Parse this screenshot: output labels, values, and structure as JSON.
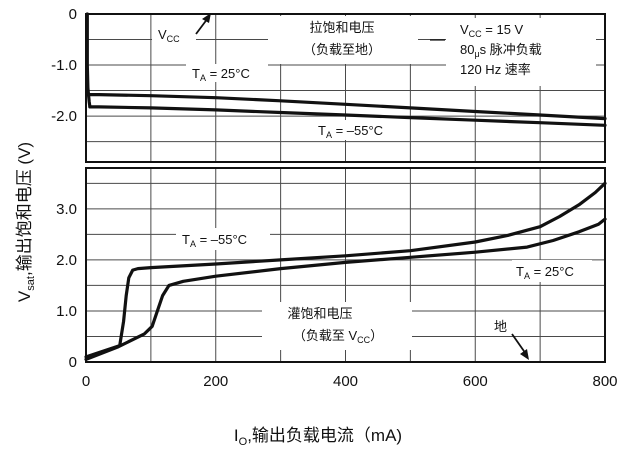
{
  "chart_data": {
    "type": "line",
    "x_ticks": [
      0,
      200,
      400,
      600,
      800
    ],
    "x_tick_labels": [
      "0",
      "200",
      "400",
      "600",
      "800"
    ],
    "xlim": [
      0,
      800
    ],
    "xlabel": {
      "pre": "I",
      "sub": "O",
      "post": ",输出负载电流（mA)"
    },
    "ylabel": {
      "pre": "V",
      "sub": "sat",
      "post": ",输出饱和电压 (V)"
    },
    "grid": true,
    "panels": [
      {
        "id": "top",
        "ylim": [
          -2.9,
          0
        ],
        "y_ticks": [
          0,
          -1.0,
          -2.0
        ],
        "y_tick_labels": [
          "0",
          "-1.0",
          "-2.0"
        ],
        "title_lines": [
          "拉饱和电压",
          "（负载至地）"
        ],
        "conditions": [
          {
            "pre": "V",
            "sub": "CC",
            "post": " = 15 V"
          },
          {
            "pre": "80",
            "sub": "μ",
            "post": "s 脉冲负载"
          },
          {
            "pre": "120 Hz  速率",
            "sub": "",
            "post": ""
          }
        ],
        "marker": {
          "pre": "V",
          "sub": "CC",
          "post": ""
        },
        "series": [
          {
            "name": "TA = 25°C",
            "label": {
              "pre": "T",
              "sub": "A",
              "post": " = 25°C"
            },
            "x": [
              6,
              20,
              100,
              200,
              300,
              400,
              500,
              600,
              700,
              800
            ],
            "y": [
              -1.58,
              -1.58,
              -1.6,
              -1.64,
              -1.7,
              -1.77,
              -1.84,
              -1.91,
              -1.98,
              -2.05
            ]
          },
          {
            "name": "TA = -55°C",
            "label": {
              "pre": "T",
              "sub": "A",
              "post": " = –55°C"
            },
            "x": [
              6,
              20,
              100,
              200,
              300,
              400,
              500,
              600,
              700,
              800
            ],
            "y": [
              -1.82,
              -1.82,
              -1.84,
              -1.88,
              -1.93,
              -1.98,
              -2.03,
              -2.08,
              -2.13,
              -2.18
            ]
          },
          {
            "name": "startup",
            "label": null,
            "x": [
              2,
              2,
              3,
              4,
              5,
              6
            ],
            "y": [
              0.0,
              -1.0,
              -1.45,
              -1.6,
              -1.72,
              -1.82
            ]
          }
        ]
      },
      {
        "id": "bottom",
        "ylim": [
          0,
          3.8
        ],
        "y_ticks": [
          0,
          1.0,
          2.0,
          3.0
        ],
        "y_tick_labels": [
          "0",
          "1.0",
          "2.0",
          "3.0"
        ],
        "title_lines": [
          "灌饱和电压",
          "（负载至 VCC）"
        ],
        "title_second_line": {
          "pre": "（负载至 V",
          "sub": "CC",
          "post": "）"
        },
        "marker": {
          "pre": "地",
          "sub": "",
          "post": ""
        },
        "series": [
          {
            "name": "TA = -55°C",
            "label": {
              "pre": "T",
              "sub": "A",
              "post": " = –55°C"
            },
            "x": [
              0,
              52,
              58,
              62,
              66,
              72,
              80,
              100,
              200,
              300,
              400,
              500,
              600,
              650,
              700,
              730,
              760,
              785,
              800
            ],
            "y": [
              0.1,
              0.32,
              0.8,
              1.3,
              1.65,
              1.8,
              1.83,
              1.85,
              1.92,
              2.0,
              2.08,
              2.18,
              2.35,
              2.48,
              2.65,
              2.85,
              3.08,
              3.32,
              3.5
            ]
          },
          {
            "name": "TA = 25°C",
            "label": {
              "pre": "T",
              "sub": "A",
              "post": " = 25°C"
            },
            "x": [
              0,
              50,
              90,
              102,
              110,
              118,
              128,
              150,
              200,
              300,
              400,
              500,
              600,
              680,
              720,
              760,
              790,
              800
            ],
            "y": [
              0.05,
              0.3,
              0.55,
              0.7,
              1.0,
              1.3,
              1.5,
              1.58,
              1.68,
              1.83,
              1.95,
              2.05,
              2.15,
              2.25,
              2.38,
              2.55,
              2.7,
              2.8
            ]
          }
        ]
      }
    ]
  }
}
